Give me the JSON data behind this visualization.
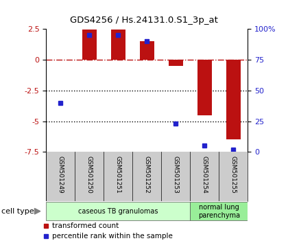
{
  "title": "GDS4256 / Hs.24131.0.S1_3p_at",
  "samples": [
    "GSM501249",
    "GSM501250",
    "GSM501251",
    "GSM501252",
    "GSM501253",
    "GSM501254",
    "GSM501255"
  ],
  "transformed_count": [
    0.0,
    2.45,
    2.45,
    1.5,
    -0.5,
    -4.5,
    -6.5
  ],
  "percentile_rank": [
    40,
    95,
    95,
    90,
    23,
    5,
    2
  ],
  "ylim_left": [
    -7.5,
    2.5
  ],
  "ylim_right": [
    0,
    100
  ],
  "yticks_left": [
    2.5,
    0,
    -2.5,
    -5,
    -7.5
  ],
  "yticks_right": [
    0,
    25,
    50,
    75,
    100
  ],
  "hlines_dotted": [
    -2.5,
    -5
  ],
  "bar_color": "#bb1111",
  "dot_color": "#2222cc",
  "bar_width": 0.5,
  "cell_type_groups": [
    {
      "label": "caseous TB granulomas",
      "span": [
        0,
        5
      ],
      "color": "#ccffcc"
    },
    {
      "label": "normal lung\nparenchyma",
      "span": [
        5,
        7
      ],
      "color": "#99ee99"
    }
  ],
  "cell_type_label": "cell type",
  "legend_items": [
    {
      "color": "#bb1111",
      "label": "transformed count"
    },
    {
      "color": "#2222cc",
      "label": "percentile rank within the sample"
    }
  ],
  "background_color": "#ffffff",
  "xlab_bg": "#cccccc"
}
